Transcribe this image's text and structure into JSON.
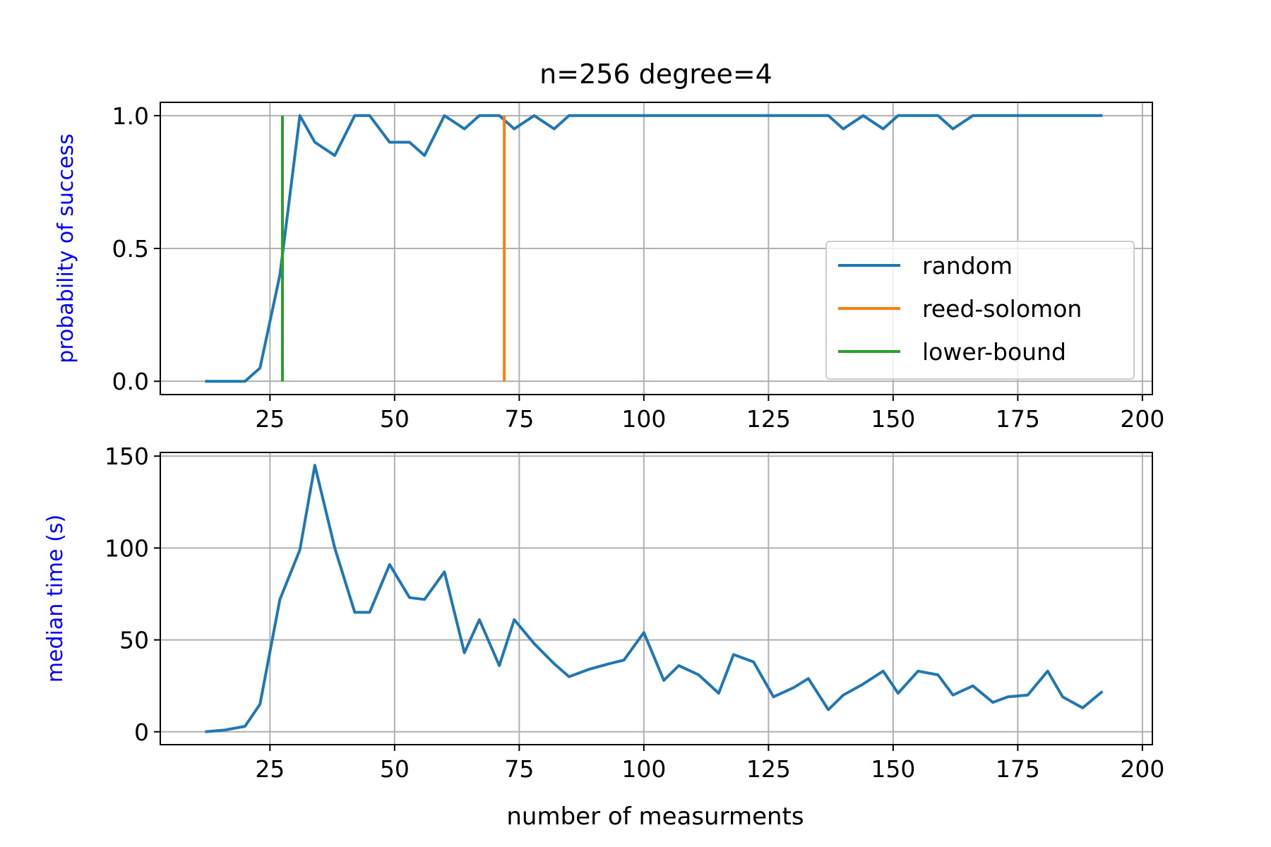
{
  "chart_data": [
    {
      "type": "line",
      "title": "n=256 degree=4",
      "xlabel": "",
      "ylabel": "probability of success",
      "xlim": [
        3,
        202
      ],
      "ylim": [
        -0.05,
        1.05
      ],
      "xticks": [
        25,
        50,
        75,
        100,
        125,
        150,
        175,
        200
      ],
      "yticks": [
        0.0,
        0.5,
        1.0
      ],
      "ytick_labels": [
        "0.0",
        "0.5",
        "1.0"
      ],
      "grid": true,
      "legend_position": "center-right",
      "series": [
        {
          "name": "random",
          "color": "#1f77b4",
          "x": [
            12,
            16,
            20,
            23,
            27,
            31,
            34,
            38,
            42,
            45,
            49,
            53,
            56,
            60,
            64,
            67,
            71,
            74,
            78,
            82,
            85,
            89,
            93,
            96,
            100,
            104,
            107,
            111,
            115,
            118,
            122,
            126,
            130,
            133,
            137,
            140,
            144,
            148,
            151,
            155,
            159,
            162,
            166,
            170,
            173,
            177,
            181,
            184,
            188,
            192
          ],
          "y": [
            0,
            0,
            0,
            0.05,
            0.4,
            1.0,
            0.9,
            0.85,
            1.0,
            1.0,
            0.9,
            0.9,
            0.85,
            1.0,
            0.95,
            1.0,
            1.0,
            0.95,
            1.0,
            0.95,
            1.0,
            1.0,
            1.0,
            1.0,
            1.0,
            1.0,
            1.0,
            1.0,
            1.0,
            1.0,
            1.0,
            1.0,
            1.0,
            1.0,
            1.0,
            0.95,
            1.0,
            0.95,
            1.0,
            1.0,
            1.0,
            0.95,
            1.0,
            1.0,
            1.0,
            1.0,
            1.0,
            1.0,
            1.0,
            1.0
          ]
        },
        {
          "name": "reed-solomon",
          "color": "#ff7f0e",
          "x": [
            72,
            72
          ],
          "y": [
            0,
            1
          ]
        },
        {
          "name": "lower-bound",
          "color": "#2ca02c",
          "x": [
            27.5,
            27.5
          ],
          "y": [
            0,
            1
          ]
        }
      ]
    },
    {
      "type": "line",
      "title": "",
      "xlabel": "number of measurments",
      "ylabel": "median time (s)",
      "xlim": [
        3,
        202
      ],
      "ylim": [
        -7,
        152
      ],
      "xticks": [
        25,
        50,
        75,
        100,
        125,
        150,
        175,
        200
      ],
      "yticks": [
        0,
        50,
        100,
        150
      ],
      "ytick_labels": [
        "0",
        "50",
        "100",
        "150"
      ],
      "grid": true,
      "series": [
        {
          "name": "random",
          "color": "#1f77b4",
          "x": [
            12,
            16,
            20,
            23,
            27,
            31,
            34,
            38,
            42,
            45,
            49,
            53,
            56,
            60,
            64,
            67,
            71,
            74,
            78,
            82,
            85,
            89,
            93,
            96,
            100,
            104,
            107,
            111,
            115,
            118,
            122,
            126,
            130,
            133,
            137,
            140,
            144,
            148,
            151,
            155,
            159,
            162,
            166,
            170,
            173,
            177,
            181,
            184,
            188,
            192
          ],
          "y": [
            0,
            1,
            3,
            15,
            72,
            99,
            145,
            100,
            65,
            65,
            91,
            73,
            72,
            87,
            43,
            61,
            36,
            61,
            48,
            37,
            30,
            34,
            37,
            39,
            54,
            28,
            36,
            31,
            21,
            42,
            38,
            19,
            24,
            29,
            12,
            20,
            26,
            33,
            21,
            33,
            31,
            20,
            25,
            16,
            19,
            20,
            33,
            19,
            13,
            22
          ]
        }
      ]
    }
  ]
}
